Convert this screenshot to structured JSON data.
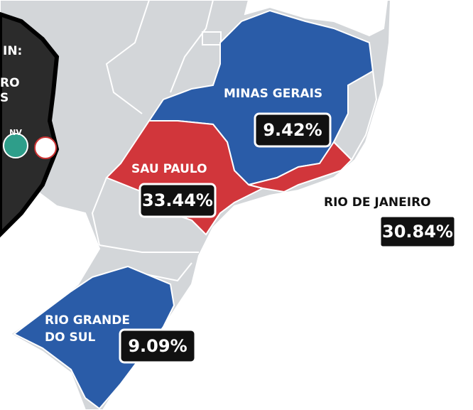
{
  "panel": {
    "lines": [
      "IN:",
      "RO",
      "S"
    ],
    "badge": "NV"
  },
  "regions": [
    {
      "name": "MINAS GERAIS",
      "percent": "9.42%"
    },
    {
      "name": "SAU PAULO",
      "percent": "33.44%"
    },
    {
      "name": "RIO DE JANEIRO",
      "percent": "30.84%"
    },
    {
      "name": "RIO GRANDE",
      "name2": "DO SUL",
      "percent": "9.09%"
    }
  ]
}
